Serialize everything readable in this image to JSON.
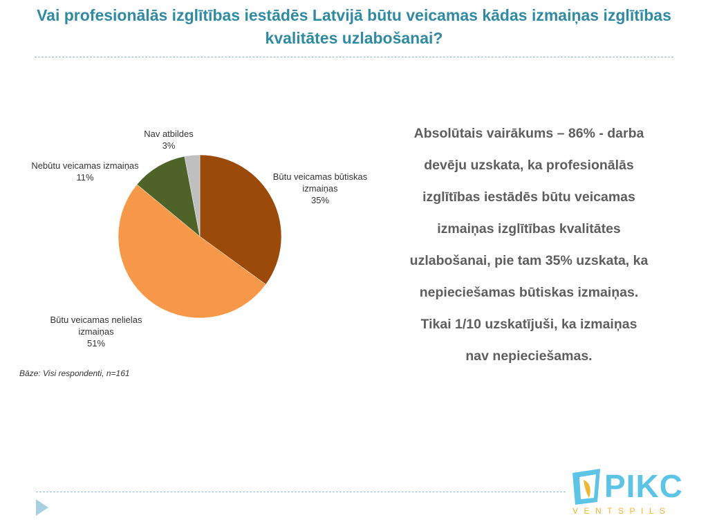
{
  "header": {
    "title": "Vai profesionālās izglītības iestādēs Latvijā būtu veicamas kādas izmaiņas izglītības kvalitātes uzlabošanai?"
  },
  "chart_data": {
    "type": "pie",
    "title": "",
    "slices": [
      {
        "name_lines": [
          "Būtu veicamas būtiskas",
          "izmaiņas"
        ],
        "value": 35,
        "label": "35%",
        "color": "#9c4a09"
      },
      {
        "name_lines": [
          "Būtu veicamas nelielas",
          "izmaiņas"
        ],
        "value": 51,
        "label": "51%",
        "color": "#f79848"
      },
      {
        "name_lines": [
          "Nebūtu veicamas izmaiņas"
        ],
        "value": 11,
        "label": "11%",
        "color": "#4f6228"
      },
      {
        "name_lines": [
          "Nav atbildes"
        ],
        "value": 3,
        "label": "3%",
        "color": "#bfbfbf"
      }
    ],
    "start_angle_deg": 0,
    "direction": "clockwise",
    "legend": "none"
  },
  "note": "Bāze: Visi respondenti, n=161",
  "summary": {
    "lines": [
      "Absolūtais vairākums – 86% - darba",
      "devēju uzskata, ka profesionālās",
      "izglītības iestādēs būtu veicamas",
      "izmaiņas izglītības kvalitātes",
      "uzlabošanai, pie tam 35% uzskata, ka",
      "nepieciešamas būtiskas izmaiņas.",
      "Tikai 1/10 uzskatījuši, ka izmaiņas",
      "nav nepieciešamas."
    ]
  },
  "logo": {
    "name": "PIKC",
    "sub": "VENTSPILS",
    "colors": {
      "primary": "#5cc4e6",
      "accent": "#f0b732"
    }
  }
}
